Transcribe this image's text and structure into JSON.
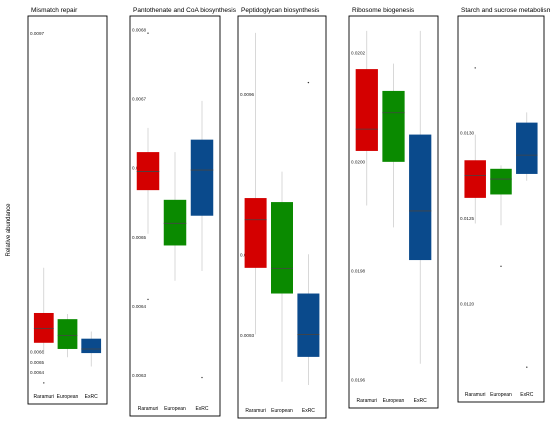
{
  "chart_data": {
    "type": "boxplot",
    "ylabel": "Relative abundance",
    "categories": [
      "Raramuri",
      "European",
      "ExRC"
    ],
    "colors": [
      "#d40000",
      "#0a8a00",
      "#0a4a8c"
    ],
    "panels": [
      {
        "title": "Mismatch repair",
        "ylim": [
          0.00626,
          0.00983
        ],
        "yticks": [
          {
            "v": 0.0064,
            "label": "0.0064"
          },
          {
            "v": 0.0065,
            "label": "0.0065"
          },
          {
            "v": 0.0066,
            "label": "0.0066"
          },
          {
            "v": 0.0097,
            "label": "0.0097"
          }
        ],
        "boxes": [
          {
            "whislo": 0.00658,
            "q1": 0.00669,
            "med": 0.00683,
            "q3": 0.00698,
            "whishi": 0.00742,
            "outliers": [
              0.0063
            ]
          },
          {
            "whislo": 0.00655,
            "q1": 0.00663,
            "med": 0.00676,
            "q3": 0.00692,
            "whishi": 0.00697,
            "outliers": []
          },
          {
            "whislo": 0.00646,
            "q1": 0.00659,
            "med": 0.00663,
            "q3": 0.00673,
            "whishi": 0.0068,
            "outliers": []
          }
        ]
      },
      {
        "title": "Pantothenate and CoA biosynthesis",
        "ylim": [
          0.006266,
          0.006814
        ],
        "yticks": [
          {
            "v": 0.0063,
            "label": "0.0063"
          },
          {
            "v": 0.0064,
            "label": "0.0064"
          },
          {
            "v": 0.0065,
            "label": "0.0065"
          },
          {
            "v": 0.0066,
            "label": "0.0066"
          },
          {
            "v": 0.0067,
            "label": "0.0067"
          },
          {
            "v": 0.0068,
            "label": "0.0068"
          }
        ],
        "boxes": [
          {
            "whislo": 0.006505,
            "q1": 0.006568,
            "med": 0.006595,
            "q3": 0.006623,
            "whishi": 0.006658,
            "outliers": [
              0.006795,
              0.00641
            ]
          },
          {
            "whislo": 0.006437,
            "q1": 0.006488,
            "med": 0.00652,
            "q3": 0.006554,
            "whishi": 0.006623,
            "outliers": []
          },
          {
            "whislo": 0.006451,
            "q1": 0.006531,
            "med": 0.006597,
            "q3": 0.006641,
            "whishi": 0.006697,
            "outliers": [
              0.006297
            ]
          }
        ]
      },
      {
        "title": "Peptidoglycan biosynthesis",
        "ylim": [
          0.009218,
          0.009693
        ],
        "yticks": [
          {
            "v": 0.0093,
            "label": "0.0093"
          },
          {
            "v": 0.0094,
            "label": "0.0094"
          },
          {
            "v": 0.0096,
            "label": "0.0096"
          }
        ],
        "boxes": [
          {
            "whislo": 0.009301,
            "q1": 0.009384,
            "med": 0.009444,
            "q3": 0.009471,
            "whishi": 0.009677,
            "outliers": []
          },
          {
            "whislo": 0.009242,
            "q1": 0.009352,
            "med": 0.009383,
            "q3": 0.009466,
            "whishi": 0.009504,
            "outliers": []
          },
          {
            "whislo": 0.009238,
            "q1": 0.009273,
            "med": 0.009301,
            "q3": 0.009352,
            "whishi": 0.009401,
            "outliers": [
              0.009615
            ]
          }
        ]
      },
      {
        "title": "Ribosome biogenesis",
        "ylim": [
          0.01958,
          0.02026
        ],
        "yticks": [
          {
            "v": 0.0196,
            "label": "0.0196"
          },
          {
            "v": 0.0198,
            "label": "0.0198"
          },
          {
            "v": 0.02,
            "label": "0.0200"
          },
          {
            "v": 0.0202,
            "label": "0.0202"
          }
        ],
        "boxes": [
          {
            "whislo": 0.01992,
            "q1": 0.02002,
            "med": 0.02006,
            "q3": 0.02017,
            "whishi": 0.02024,
            "outliers": []
          },
          {
            "whislo": 0.01988,
            "q1": 0.02,
            "med": 0.02009,
            "q3": 0.02013,
            "whishi": 0.02018,
            "outliers": []
          },
          {
            "whislo": 0.01963,
            "q1": 0.01982,
            "med": 0.01991,
            "q3": 0.02005,
            "whishi": 0.02024,
            "outliers": []
          }
        ]
      },
      {
        "title": "Starch and sucrose metabolism",
        "ylim": [
          0.011526,
          0.01366
        ],
        "yticks": [
          {
            "v": 0.012,
            "label": "0.0120"
          },
          {
            "v": 0.0125,
            "label": "0.0125"
          },
          {
            "v": 0.013,
            "label": "0.0130"
          }
        ],
        "boxes": [
          {
            "whislo": 0.01247,
            "q1": 0.01262,
            "med": 0.01275,
            "q3": 0.01284,
            "whishi": 0.01299,
            "outliers": [
              0.01338
            ]
          },
          {
            "whislo": 0.01246,
            "q1": 0.01264,
            "med": 0.01273,
            "q3": 0.01279,
            "whishi": 0.01281,
            "outliers": [
              0.01222
            ]
          },
          {
            "whislo": 0.01272,
            "q1": 0.01276,
            "med": 0.01287,
            "q3": 0.01306,
            "whishi": 0.01312,
            "outliers": [
              0.01163
            ]
          }
        ]
      }
    ]
  }
}
